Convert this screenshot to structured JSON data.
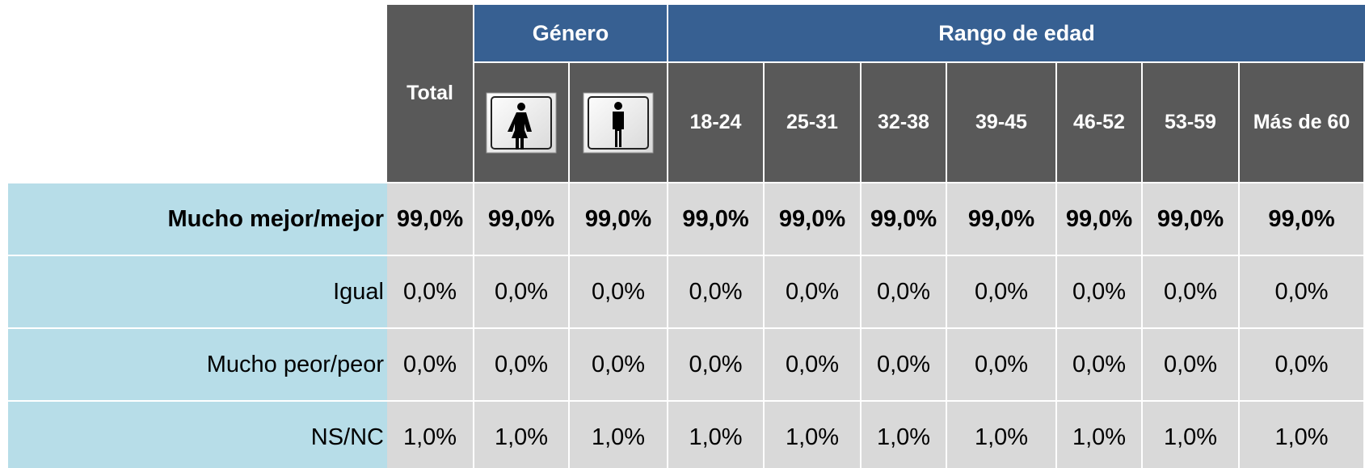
{
  "table": {
    "header": {
      "total": "Total",
      "groups": [
        "Género",
        "Rango de edad"
      ],
      "age_ranges": [
        "18-24",
        "25-31",
        "32-38",
        "39-45",
        "46-52",
        "53-59",
        "Más de 60"
      ]
    },
    "rows": [
      {
        "label": "Mucho mejor/mejor",
        "values": [
          "99,0%",
          "99,0%",
          "99,0%",
          "99,0%",
          "99,0%",
          "99,0%",
          "99,0%",
          "99,0%",
          "99,0%",
          "99,0%"
        ]
      },
      {
        "label": "Igual",
        "values": [
          "0,0%",
          "0,0%",
          "0,0%",
          "0,0%",
          "0,0%",
          "0,0%",
          "0,0%",
          "0,0%",
          "0,0%",
          "0,0%"
        ]
      },
      {
        "label": "Mucho peor/peor",
        "values": [
          "0,0%",
          "0,0%",
          "0,0%",
          "0,0%",
          "0,0%",
          "0,0%",
          "0,0%",
          "0,0%",
          "0,0%",
          "0,0%"
        ]
      },
      {
        "label": "NS/NC",
        "values": [
          "1,0%",
          "1,0%",
          "1,0%",
          "1,0%",
          "1,0%",
          "1,0%",
          "1,0%",
          "1,0%",
          "1,0%",
          "1,0%"
        ]
      }
    ]
  }
}
